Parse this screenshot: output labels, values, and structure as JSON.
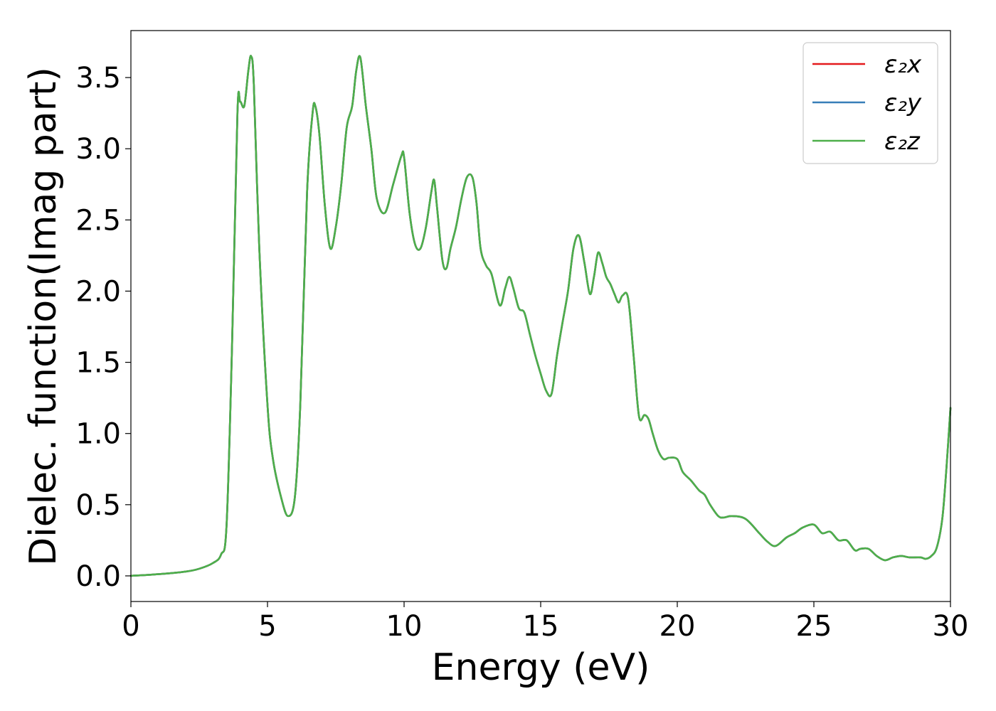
{
  "chart_data": {
    "type": "line",
    "title": "",
    "xlabel": "Energy (eV)",
    "ylabel": "Dielec. function(Imag part)",
    "xlim": [
      0,
      30
    ],
    "ylim": [
      -0.18,
      3.83
    ],
    "xticks": [
      0,
      5,
      10,
      15,
      20,
      25,
      30
    ],
    "xtick_labels": [
      "0",
      "5",
      "10",
      "15",
      "20",
      "25",
      "30"
    ],
    "yticks": [
      0.0,
      0.5,
      1.0,
      1.5,
      2.0,
      2.5,
      3.0,
      3.5
    ],
    "ytick_labels": [
      "0.0",
      "0.5",
      "1.0",
      "1.5",
      "2.0",
      "2.5",
      "3.0",
      "3.5"
    ],
    "grid": false,
    "legend_position": "top-right",
    "x": [
      0,
      1,
      2,
      2.5,
      3,
      3.3,
      3.5,
      3.7,
      3.9,
      4.0,
      4.15,
      4.3,
      4.4,
      4.5,
      4.7,
      5.0,
      5.2,
      5.5,
      5.75,
      6.0,
      6.2,
      6.45,
      6.65,
      6.75,
      6.9,
      7.1,
      7.3,
      7.5,
      7.7,
      7.9,
      8.1,
      8.25,
      8.4,
      8.6,
      8.8,
      9.0,
      9.3,
      9.6,
      9.9,
      10.0,
      10.2,
      10.4,
      10.6,
      10.8,
      11.0,
      11.1,
      11.2,
      11.4,
      11.55,
      11.7,
      11.9,
      12.1,
      12.3,
      12.5,
      12.65,
      12.8,
      13.0,
      13.2,
      13.5,
      13.7,
      13.85,
      14.0,
      14.2,
      14.4,
      14.6,
      14.8,
      15.0,
      15.2,
      15.4,
      15.6,
      15.8,
      16.0,
      16.2,
      16.4,
      16.6,
      16.8,
      16.95,
      17.1,
      17.25,
      17.4,
      17.55,
      17.7,
      17.85,
      18.0,
      18.2,
      18.4,
      18.6,
      18.8,
      18.95,
      19.1,
      19.3,
      19.5,
      19.7,
      20.0,
      20.2,
      20.5,
      20.8,
      21.0,
      21.2,
      21.5,
      21.7,
      22.0,
      22.5,
      23.0,
      23.3,
      23.6,
      24.0,
      24.3,
      24.6,
      25.0,
      25.3,
      25.6,
      25.9,
      26.2,
      26.5,
      26.7,
      27.0,
      27.3,
      27.6,
      27.9,
      28.2,
      28.5,
      28.9,
      29.1,
      29.3,
      29.5,
      29.7,
      29.85,
      30.0
    ],
    "series": [
      {
        "name": "ε₂x",
        "color": "#e41a1c",
        "y": [
          0.0,
          0.012,
          0.03,
          0.05,
          0.09,
          0.15,
          0.35,
          1.6,
          3.25,
          3.33,
          3.3,
          3.55,
          3.65,
          3.45,
          2.3,
          1.2,
          0.82,
          0.55,
          0.42,
          0.55,
          1.2,
          2.7,
          3.25,
          3.3,
          3.1,
          2.6,
          2.3,
          2.45,
          2.75,
          3.15,
          3.3,
          3.55,
          3.64,
          3.3,
          3.0,
          2.65,
          2.55,
          2.75,
          2.95,
          2.94,
          2.55,
          2.33,
          2.3,
          2.45,
          2.7,
          2.78,
          2.6,
          2.22,
          2.16,
          2.3,
          2.45,
          2.65,
          2.8,
          2.8,
          2.62,
          2.3,
          2.18,
          2.12,
          1.9,
          2.02,
          2.1,
          2.02,
          1.88,
          1.85,
          1.7,
          1.55,
          1.42,
          1.3,
          1.28,
          1.55,
          1.78,
          2.0,
          2.3,
          2.39,
          2.2,
          1.98,
          2.1,
          2.27,
          2.2,
          2.1,
          2.05,
          1.98,
          1.92,
          1.97,
          1.95,
          1.55,
          1.12,
          1.13,
          1.1,
          1.0,
          0.88,
          0.82,
          0.83,
          0.82,
          0.73,
          0.67,
          0.6,
          0.57,
          0.5,
          0.42,
          0.41,
          0.42,
          0.4,
          0.3,
          0.24,
          0.21,
          0.27,
          0.3,
          0.34,
          0.36,
          0.3,
          0.31,
          0.25,
          0.25,
          0.18,
          0.19,
          0.19,
          0.14,
          0.11,
          0.13,
          0.14,
          0.13,
          0.13,
          0.12,
          0.14,
          0.2,
          0.4,
          0.75,
          1.18
        ]
      },
      {
        "name": "ε₂y",
        "color": "#377eb8",
        "y": [
          0.0,
          0.012,
          0.03,
          0.05,
          0.09,
          0.15,
          0.35,
          1.6,
          3.25,
          3.33,
          3.3,
          3.55,
          3.65,
          3.45,
          2.3,
          1.2,
          0.82,
          0.55,
          0.42,
          0.55,
          1.2,
          2.7,
          3.25,
          3.3,
          3.1,
          2.6,
          2.3,
          2.45,
          2.75,
          3.15,
          3.3,
          3.55,
          3.64,
          3.3,
          3.0,
          2.65,
          2.55,
          2.75,
          2.95,
          2.94,
          2.55,
          2.33,
          2.3,
          2.45,
          2.7,
          2.78,
          2.6,
          2.22,
          2.16,
          2.3,
          2.45,
          2.65,
          2.8,
          2.8,
          2.62,
          2.3,
          2.18,
          2.12,
          1.9,
          2.02,
          2.1,
          2.02,
          1.88,
          1.85,
          1.7,
          1.55,
          1.42,
          1.3,
          1.28,
          1.55,
          1.78,
          2.0,
          2.3,
          2.39,
          2.2,
          1.98,
          2.1,
          2.27,
          2.2,
          2.1,
          2.05,
          1.98,
          1.92,
          1.97,
          1.95,
          1.55,
          1.12,
          1.13,
          1.1,
          1.0,
          0.88,
          0.82,
          0.83,
          0.82,
          0.73,
          0.67,
          0.6,
          0.57,
          0.5,
          0.42,
          0.41,
          0.42,
          0.4,
          0.3,
          0.24,
          0.21,
          0.27,
          0.3,
          0.34,
          0.36,
          0.3,
          0.31,
          0.25,
          0.25,
          0.18,
          0.19,
          0.19,
          0.14,
          0.11,
          0.13,
          0.14,
          0.13,
          0.13,
          0.12,
          0.14,
          0.2,
          0.4,
          0.75,
          1.18
        ]
      },
      {
        "name": "ε₂z",
        "color": "#4daf4a",
        "y": [
          0.0,
          0.012,
          0.03,
          0.05,
          0.09,
          0.15,
          0.35,
          1.6,
          3.25,
          3.33,
          3.3,
          3.55,
          3.65,
          3.45,
          2.3,
          1.2,
          0.82,
          0.55,
          0.42,
          0.55,
          1.2,
          2.7,
          3.25,
          3.3,
          3.1,
          2.6,
          2.3,
          2.45,
          2.75,
          3.15,
          3.3,
          3.55,
          3.64,
          3.3,
          3.0,
          2.65,
          2.55,
          2.75,
          2.95,
          2.94,
          2.55,
          2.33,
          2.3,
          2.45,
          2.7,
          2.78,
          2.6,
          2.22,
          2.16,
          2.3,
          2.45,
          2.65,
          2.8,
          2.8,
          2.62,
          2.3,
          2.18,
          2.12,
          1.9,
          2.02,
          2.1,
          2.02,
          1.88,
          1.85,
          1.7,
          1.55,
          1.42,
          1.3,
          1.28,
          1.55,
          1.78,
          2.0,
          2.3,
          2.39,
          2.2,
          1.98,
          2.1,
          2.27,
          2.2,
          2.1,
          2.05,
          1.98,
          1.92,
          1.97,
          1.95,
          1.55,
          1.12,
          1.13,
          1.1,
          1.0,
          0.88,
          0.82,
          0.83,
          0.82,
          0.73,
          0.67,
          0.6,
          0.57,
          0.5,
          0.42,
          0.41,
          0.42,
          0.4,
          0.3,
          0.24,
          0.21,
          0.27,
          0.3,
          0.34,
          0.36,
          0.3,
          0.31,
          0.25,
          0.25,
          0.18,
          0.19,
          0.19,
          0.14,
          0.11,
          0.13,
          0.14,
          0.13,
          0.13,
          0.12,
          0.14,
          0.2,
          0.4,
          0.75,
          1.18
        ]
      }
    ]
  }
}
